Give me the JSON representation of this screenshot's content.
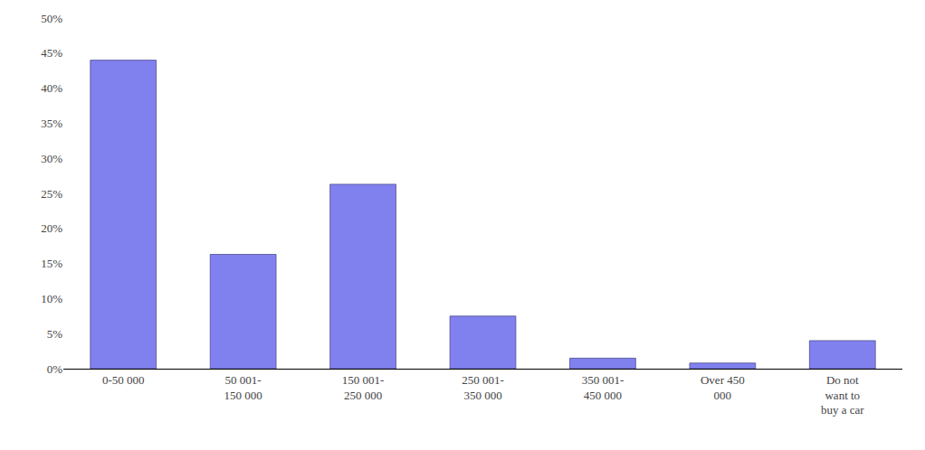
{
  "chart_data": {
    "type": "bar",
    "categories": [
      "0-50 000",
      "50 001-\n150 000",
      "150 001-\n250 000",
      "250 001-\n350 000",
      "350 001-\n450 000",
      "Over 450\n000",
      "Do not\nwant to\nbuy a car"
    ],
    "values": [
      0.44,
      0.163,
      0.263,
      0.075,
      0.015,
      0.008,
      0.04
    ],
    "color": "#8080ee",
    "ylim": [
      0,
      0.5
    ],
    "yticks": [
      {
        "value": 0.0,
        "label": "0%"
      },
      {
        "value": 0.05,
        "label": "5%"
      },
      {
        "value": 0.1,
        "label": "10%"
      },
      {
        "value": 0.15,
        "label": "15%"
      },
      {
        "value": 0.2,
        "label": "20%"
      },
      {
        "value": 0.25,
        "label": "25%"
      },
      {
        "value": 0.3,
        "label": "30%"
      },
      {
        "value": 0.35,
        "label": "35%"
      },
      {
        "value": 0.4,
        "label": "40%"
      },
      {
        "value": 0.45,
        "label": "45%"
      },
      {
        "value": 0.5,
        "label": "50%"
      }
    ],
    "grid": false
  }
}
